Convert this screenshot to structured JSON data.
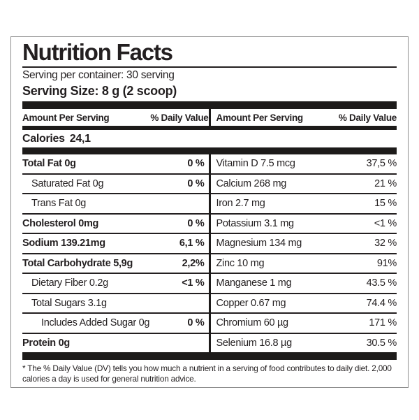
{
  "label": {
    "title": "Nutrition Facts",
    "serving_per_container": "Serving per container: 30 serving",
    "serving_size": "Serving Size: 8 g (2 scoop)",
    "column_headers": {
      "amount": "Amount Per Serving",
      "daily_value": "% Daily Value"
    },
    "calories": {
      "label": "Calories",
      "value": "24,1"
    },
    "left_rows": [
      {
        "name": "Total Fat 0g",
        "dv": "0 %",
        "bold": true,
        "indent": 0
      },
      {
        "name": "Saturated Fat 0g",
        "dv": "0 %",
        "bold": false,
        "indent": 1
      },
      {
        "name": "Trans Fat 0g",
        "dv": "",
        "bold": false,
        "indent": 1
      },
      {
        "name": "Cholesterol 0mg",
        "dv": "0 %",
        "bold": true,
        "indent": 0
      },
      {
        "name": "Sodium 139.21mg",
        "dv": "6,1 %",
        "bold": true,
        "indent": 0
      },
      {
        "name": "Total Carbohydrate 5,9g",
        "dv": "2,2%",
        "bold": true,
        "indent": 0
      },
      {
        "name": "Dietary Fiber 0.2g",
        "dv": "<1 %",
        "bold": false,
        "indent": 1
      },
      {
        "name": "Total Sugars 3.1g",
        "dv": "",
        "bold": false,
        "indent": 1
      },
      {
        "name": "Includes Added Sugar 0g",
        "dv": "0 %",
        "bold": false,
        "indent": 2
      },
      {
        "name": "Protein 0g",
        "dv": "",
        "bold": true,
        "indent": 0
      }
    ],
    "right_rows": [
      {
        "name": "Vitamin D 7.5 mcg",
        "dv": "37,5 %"
      },
      {
        "name": "Calcium 268 mg",
        "dv": "21 %"
      },
      {
        "name": "Iron 2.7 mg",
        "dv": "15 %"
      },
      {
        "name": "Potassium 3.1 mg",
        "dv": "<1 %"
      },
      {
        "name": "Magnesium 134 mg",
        "dv": "32 %"
      },
      {
        "name": "Zinc 10 mg",
        "dv": "91%"
      },
      {
        "name": "Manganese 1 mg",
        "dv": "43.5 %"
      },
      {
        "name": "Copper 0.67 mg",
        "dv": "74.4 %"
      },
      {
        "name": "Chromium 60 µg",
        "dv": "171 %"
      },
      {
        "name": "Selenium 16.8 µg",
        "dv": "30.5 %"
      }
    ],
    "footnote": "* The % Daily Value (DV) tells you how much a nutrient in a serving of food contributes to daily diet. 2,000 calories a day is used for general nutrition advice.",
    "colors": {
      "text": "#231f20",
      "bar": "#1d1b1a",
      "border": "#8e8e8e",
      "background": "#ffffff"
    }
  }
}
